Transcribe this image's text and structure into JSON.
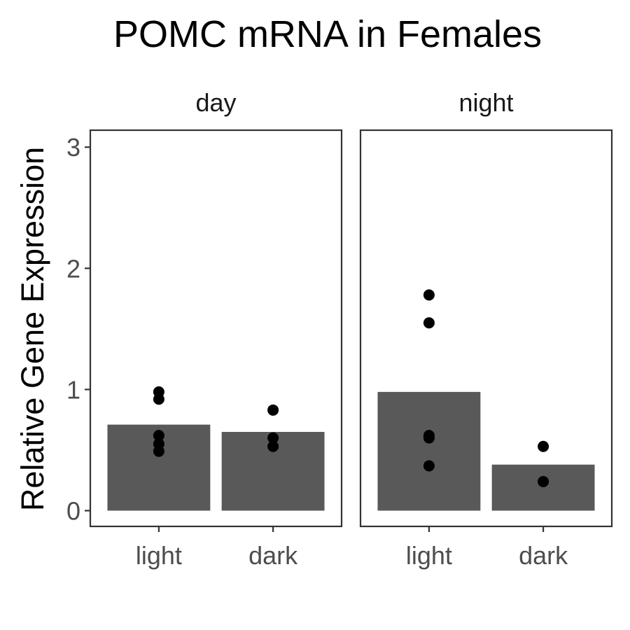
{
  "chart_data": {
    "type": "bar",
    "title": "POMC mRNA in Females",
    "ylabel": "Relative Gene Expression",
    "xlabel": "",
    "ylim": [
      -0.13,
      3.14
    ],
    "yticks": [
      0,
      1,
      2,
      3
    ],
    "categories": [
      "light",
      "dark"
    ],
    "panels": [
      {
        "label": "day",
        "bars": [
          0.71,
          0.65
        ],
        "points": [
          [
            0.98,
            0.92,
            0.62,
            0.55,
            0.49
          ],
          [
            0.83,
            0.6,
            0.53
          ]
        ]
      },
      {
        "label": "night",
        "bars": [
          0.98,
          0.38
        ],
        "points": [
          [
            1.78,
            1.55,
            0.62,
            0.6,
            0.37
          ],
          [
            0.53,
            0.24
          ]
        ]
      }
    ],
    "colors": {
      "bar": "#595959",
      "point": "#000000",
      "panel_border": "#333333",
      "tick_text": "#4d4d4d",
      "axis": "#333333"
    },
    "grid": false,
    "legend": "none"
  }
}
